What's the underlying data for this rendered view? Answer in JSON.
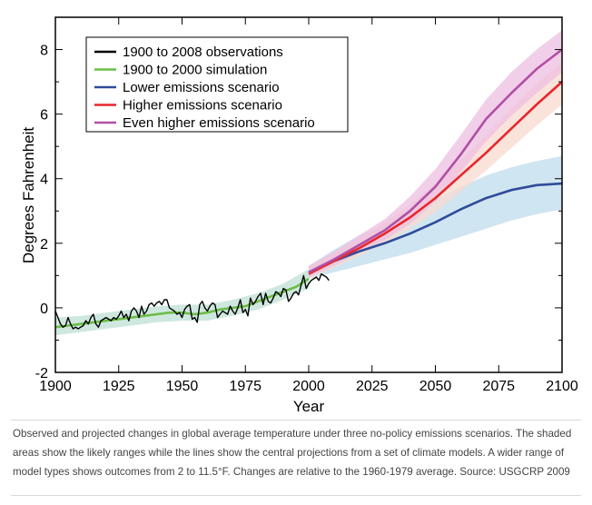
{
  "chart_data": {
    "type": "line",
    "xlabel": "Year",
    "ylabel": "Degrees Fahrenheit",
    "xlim": [
      1900,
      2100
    ],
    "ylim": [
      -2,
      9
    ],
    "xticks": [
      1900,
      1925,
      1950,
      1975,
      2000,
      2025,
      2050,
      2075,
      2100
    ],
    "yticks": [
      -2,
      0,
      2,
      4,
      6,
      8
    ],
    "legend_position": "top-left",
    "series": [
      {
        "name": "1900 to 2008 observations",
        "color": "#000000",
        "x": [
          1900,
          1901,
          1902,
          1903,
          1904,
          1905,
          1906,
          1907,
          1908,
          1909,
          1910,
          1911,
          1912,
          1913,
          1914,
          1915,
          1916,
          1917,
          1918,
          1919,
          1920,
          1921,
          1922,
          1923,
          1924,
          1925,
          1926,
          1927,
          1928,
          1929,
          1930,
          1931,
          1932,
          1933,
          1934,
          1935,
          1936,
          1937,
          1938,
          1939,
          1940,
          1941,
          1942,
          1943,
          1944,
          1945,
          1946,
          1947,
          1948,
          1949,
          1950,
          1951,
          1952,
          1953,
          1954,
          1955,
          1956,
          1957,
          1958,
          1959,
          1960,
          1961,
          1962,
          1963,
          1964,
          1965,
          1966,
          1967,
          1968,
          1969,
          1970,
          1971,
          1972,
          1973,
          1974,
          1975,
          1976,
          1977,
          1978,
          1979,
          1980,
          1981,
          1982,
          1983,
          1984,
          1985,
          1986,
          1987,
          1988,
          1989,
          1990,
          1991,
          1992,
          1993,
          1994,
          1995,
          1996,
          1997,
          1998,
          1999,
          2000,
          2001,
          2002,
          2003,
          2004,
          2005,
          2006,
          2007,
          2008
        ],
        "y": [
          -0.1,
          -0.3,
          -0.5,
          -0.6,
          -0.55,
          -0.3,
          -0.5,
          -0.65,
          -0.6,
          -0.65,
          -0.6,
          -0.55,
          -0.4,
          -0.5,
          -0.3,
          -0.2,
          -0.5,
          -0.6,
          -0.4,
          -0.35,
          -0.3,
          -0.35,
          -0.4,
          -0.3,
          -0.35,
          -0.25,
          -0.1,
          -0.3,
          -0.2,
          -0.4,
          -0.1,
          0.0,
          -0.1,
          -0.3,
          0.05,
          -0.2,
          -0.1,
          0.1,
          0.15,
          0.05,
          0.15,
          0.2,
          0.1,
          0.25,
          0.25,
          0.0,
          -0.05,
          -0.1,
          -0.2,
          -0.15,
          -0.3,
          -0.05,
          0.05,
          0.1,
          -0.35,
          -0.3,
          -0.45,
          0.1,
          0.2,
          0.0,
          -0.1,
          0.05,
          0.15,
          0.1,
          -0.3,
          -0.2,
          -0.1,
          -0.15,
          -0.2,
          0.05,
          -0.1,
          -0.2,
          0.0,
          0.25,
          -0.15,
          -0.05,
          -0.25,
          0.3,
          0.1,
          0.2,
          0.35,
          0.45,
          0.1,
          0.45,
          0.2,
          0.15,
          0.3,
          0.5,
          0.45,
          0.35,
          0.6,
          0.55,
          0.2,
          0.3,
          0.45,
          0.5,
          0.4,
          0.7,
          1.0,
          0.6,
          0.75,
          0.85,
          0.9,
          0.95,
          0.85,
          1.05,
          1.0,
          0.95,
          0.85
        ]
      },
      {
        "name": "1900 to 2000 simulation",
        "color": "#6cbd45",
        "x": [
          1900,
          1905,
          1910,
          1915,
          1920,
          1925,
          1930,
          1935,
          1940,
          1945,
          1950,
          1955,
          1960,
          1965,
          1970,
          1975,
          1980,
          1985,
          1990,
          1995,
          2000
        ],
        "y": [
          -0.6,
          -0.55,
          -0.5,
          -0.45,
          -0.4,
          -0.35,
          -0.3,
          -0.25,
          -0.2,
          -0.15,
          -0.15,
          -0.2,
          -0.15,
          -0.05,
          0.0,
          0.05,
          0.2,
          0.35,
          0.5,
          0.65,
          0.9
        ]
      },
      {
        "name": "Lower emissions scenario",
        "color": "#2f4b9a",
        "x": [
          2000,
          2010,
          2020,
          2030,
          2040,
          2050,
          2060,
          2070,
          2080,
          2090,
          2100
        ],
        "y": [
          1.1,
          1.45,
          1.75,
          2.0,
          2.3,
          2.65,
          3.05,
          3.4,
          3.65,
          3.8,
          3.85
        ],
        "band_low": [
          0.9,
          1.1,
          1.3,
          1.5,
          1.7,
          1.95,
          2.2,
          2.45,
          2.7,
          2.9,
          3.05
        ],
        "band_high": [
          1.3,
          1.8,
          2.25,
          2.55,
          2.95,
          3.35,
          3.75,
          4.1,
          4.35,
          4.55,
          4.7
        ]
      },
      {
        "name": "Higher emissions scenario",
        "color": "#e8262b",
        "x": [
          2000,
          2010,
          2020,
          2030,
          2040,
          2050,
          2060,
          2070,
          2080,
          2090,
          2100
        ],
        "y": [
          1.05,
          1.45,
          1.85,
          2.3,
          2.8,
          3.4,
          4.1,
          4.8,
          5.55,
          6.3,
          7.0
        ],
        "band_low": [
          0.9,
          1.25,
          1.6,
          2.0,
          2.45,
          2.95,
          3.6,
          4.25,
          4.95,
          5.65,
          6.3
        ],
        "band_high": [
          1.25,
          1.7,
          2.15,
          2.65,
          3.2,
          3.85,
          4.6,
          5.35,
          6.15,
          6.95,
          7.6
        ]
      },
      {
        "name": "Even higher emissions scenario",
        "color": "#b04fa5",
        "x": [
          2000,
          2010,
          2020,
          2030,
          2040,
          2050,
          2060,
          2070,
          2080,
          2090,
          2100
        ],
        "y": [
          1.1,
          1.5,
          1.95,
          2.4,
          3.0,
          3.75,
          4.75,
          5.85,
          6.65,
          7.4,
          8.0
        ],
        "band_low": [
          0.95,
          1.3,
          1.7,
          2.1,
          2.6,
          3.3,
          4.2,
          5.15,
          5.95,
          6.65,
          7.3
        ],
        "band_high": [
          1.3,
          1.75,
          2.25,
          2.75,
          3.45,
          4.3,
          5.35,
          6.45,
          7.3,
          8.0,
          8.6
        ]
      }
    ],
    "simulation_band": {
      "x": [
        1900,
        1910,
        1920,
        1930,
        1940,
        1950,
        1960,
        1970,
        1980,
        1990,
        2000
      ],
      "low": [
        -0.85,
        -0.75,
        -0.65,
        -0.55,
        -0.45,
        -0.4,
        -0.4,
        -0.25,
        -0.05,
        0.25,
        0.6
      ],
      "high": [
        -0.3,
        -0.25,
        -0.15,
        -0.05,
        0.05,
        0.1,
        0.1,
        0.25,
        0.45,
        0.75,
        1.2
      ]
    }
  },
  "band_colors": {
    "simulation": "#cfe8df",
    "lower": "#cfe5f1",
    "higher": "#f8d9cf",
    "even_higher": "#eebfe0"
  },
  "caption": "Observed and projected changes in global average temperature under three no-policy emissions scenarios. The shaded areas show the likely ranges while the lines show the central projections from a set of climate models. A wider range of model types shows outcomes from 2 to 11.5°F. Changes are relative to the 1960-1979 average. Source: USGCRP 2009"
}
